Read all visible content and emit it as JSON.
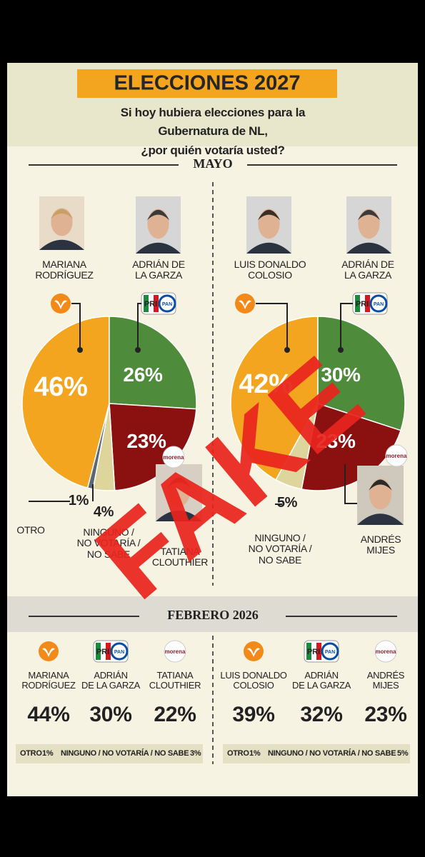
{
  "header": {
    "title": "ELECCIONES 2027",
    "subtitle": "Si hoy hubiera elecciones para la Gubernatura de NL,\n¿por quién votaría usted?"
  },
  "section_title": "MAYO",
  "logos": {
    "pri": "PRI",
    "pan": "PAN",
    "morena": "morena"
  },
  "chart_data": [
    {
      "type": "pie",
      "categories": [
        "MARIANA\nRODRÍGUEZ",
        "ADRIÁN DE\nLA GARZA",
        "TATIANA\nCLOUTHIER",
        "NINGUNO /\nNO VOTARÍA /\nNO SABE",
        "OTRO"
      ],
      "values": [
        46,
        26,
        23,
        4,
        1
      ],
      "value_labels": [
        "46%",
        "26%",
        "23%",
        "4%",
        "1%"
      ],
      "colors": [
        "#f4a51f",
        "#4e8b3a",
        "#8b1111",
        "#ddd59c",
        "#5b6873"
      ]
    },
    {
      "type": "pie",
      "categories": [
        "LUIS DONALDO\nCOLOSIO",
        "ADRIÁN DE\nLA GARZA",
        "ANDRÉS\nMIJES",
        "NINGUNO /\nNO VOTARÍA /\nNO SABE"
      ],
      "values": [
        42,
        30,
        23,
        5
      ],
      "value_labels": [
        "42%",
        "30%",
        "23%",
        "5%"
      ],
      "colors": [
        "#f4a51f",
        "#4e8b3a",
        "#8b1111",
        "#ddd59c"
      ]
    }
  ],
  "february": {
    "title": "FEBRERO 2026",
    "groups": [
      {
        "candidates": [
          {
            "name": "MARIANA\nRODRÍGUEZ",
            "value": "44%"
          },
          {
            "name": "ADRIÁN\nDE LA GARZA",
            "value": "30%"
          },
          {
            "name": "TATIANA\nCLOUTHIER",
            "value": "22%"
          }
        ],
        "footer": [
          {
            "label": "OTRO",
            "value": "1%"
          },
          {
            "label": "NINGUNO / NO VOTARÍA / NO SABE",
            "value": "3%"
          }
        ]
      },
      {
        "candidates": [
          {
            "name": "LUIS DONALDO\nCOLOSIO",
            "value": "39%"
          },
          {
            "name": "ADRIÁN\nDE LA GARZA",
            "value": "32%"
          },
          {
            "name": "ANDRÉS\nMIJES",
            "value": "23%"
          }
        ],
        "footer": [
          {
            "label": "OTRO",
            "value": "1%"
          },
          {
            "label": "NINGUNO / NO VOTARÍA / NO SABE",
            "value": "5%"
          }
        ]
      }
    ]
  },
  "stamp": "FAKE"
}
